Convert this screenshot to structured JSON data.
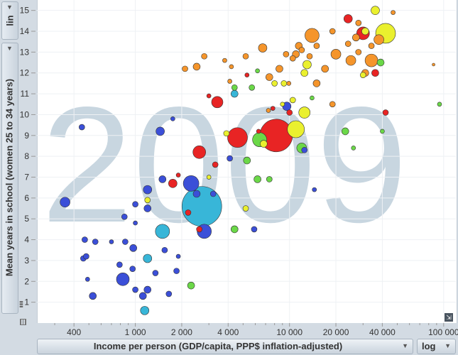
{
  "year_watermark": "2009",
  "y_scale": {
    "label": "lin"
  },
  "x_scale": {
    "label": "log"
  },
  "chart_data": {
    "type": "scatter",
    "title": "",
    "xlabel": "Income per person (GDP/capita, PPP$ inflation-adjusted)",
    "ylabel": "Mean years in school (women 25 to 34 years)",
    "x_scale": "log",
    "y_scale": "linear",
    "xlim": [
      230,
      120000
    ],
    "ylim": [
      0,
      15.5
    ],
    "x_ticks": [
      400,
      1000,
      2000,
      4000,
      10000,
      20000,
      40000,
      100000
    ],
    "x_tick_labels": [
      "400",
      "1 000",
      "2 000",
      "4 000",
      "10 000",
      "20 000",
      "40 000",
      "100 000"
    ],
    "y_ticks": [
      1,
      2,
      3,
      4,
      5,
      6,
      7,
      8,
      9,
      10,
      11,
      12,
      13,
      14,
      15
    ],
    "y_tick_labels": [
      "1",
      "2",
      "3",
      "4",
      "5",
      "6",
      "7",
      "8",
      "9",
      "10",
      "11",
      "12",
      "13",
      "14",
      "15"
    ],
    "colors": {
      "blue": "#3b4fd8",
      "cyan": "#38b6d8",
      "green": "#6bd848",
      "yellow": "#eaf02e",
      "orange": "#f5952b",
      "red": "#e82424"
    },
    "points": [
      {
        "x": 8200,
        "y": 9.0,
        "r": 23,
        "c": "red"
      },
      {
        "x": 2700,
        "y": 5.6,
        "r": 28,
        "c": "cyan"
      },
      {
        "x": 42000,
        "y": 13.9,
        "r": 14,
        "c": "yellow"
      },
      {
        "x": 4600,
        "y": 8.9,
        "r": 14,
        "c": "red"
      },
      {
        "x": 11000,
        "y": 9.3,
        "r": 12,
        "c": "yellow"
      },
      {
        "x": 6400,
        "y": 8.8,
        "r": 10,
        "c": "green"
      },
      {
        "x": 2300,
        "y": 6.7,
        "r": 11,
        "c": "blue"
      },
      {
        "x": 2800,
        "y": 4.4,
        "r": 10,
        "c": "blue"
      },
      {
        "x": 1500,
        "y": 4.4,
        "r": 10,
        "c": "cyan"
      },
      {
        "x": 3400,
        "y": 10.6,
        "r": 8,
        "c": "red"
      },
      {
        "x": 2600,
        "y": 8.2,
        "r": 9,
        "c": "red"
      },
      {
        "x": 14000,
        "y": 13.8,
        "r": 10,
        "c": "orange"
      },
      {
        "x": 30000,
        "y": 13.9,
        "r": 9,
        "c": "red"
      },
      {
        "x": 34000,
        "y": 12.6,
        "r": 9,
        "c": "orange"
      },
      {
        "x": 38000,
        "y": 13.6,
        "r": 7,
        "c": "orange"
      },
      {
        "x": 24000,
        "y": 14.6,
        "r": 6,
        "c": "red"
      },
      {
        "x": 36000,
        "y": 15.0,
        "r": 6,
        "c": "yellow"
      },
      {
        "x": 31000,
        "y": 12.0,
        "r": 5,
        "c": "orange"
      },
      {
        "x": 12500,
        "y": 10.1,
        "r": 8,
        "c": "yellow"
      },
      {
        "x": 9600,
        "y": 10.4,
        "r": 6,
        "c": "blue"
      },
      {
        "x": 13000,
        "y": 12.4,
        "r": 6,
        "c": "yellow"
      },
      {
        "x": 17000,
        "y": 12.2,
        "r": 5,
        "c": "orange"
      },
      {
        "x": 15000,
        "y": 11.5,
        "r": 5,
        "c": "orange"
      },
      {
        "x": 20000,
        "y": 12.9,
        "r": 7,
        "c": "orange"
      },
      {
        "x": 25000,
        "y": 12.6,
        "r": 7,
        "c": "orange"
      },
      {
        "x": 42000,
        "y": 10.1,
        "r": 4,
        "c": "red"
      },
      {
        "x": 36000,
        "y": 12.0,
        "r": 5,
        "c": "red"
      },
      {
        "x": 23000,
        "y": 9.2,
        "r": 5,
        "c": "green"
      },
      {
        "x": 12000,
        "y": 8.4,
        "r": 7,
        "c": "green"
      },
      {
        "x": 12500,
        "y": 8.3,
        "r": 4,
        "c": "blue"
      },
      {
        "x": 6800,
        "y": 8.6,
        "r": 5,
        "c": "yellow"
      },
      {
        "x": 5300,
        "y": 7.8,
        "r": 5,
        "c": "green"
      },
      {
        "x": 4100,
        "y": 7.9,
        "r": 4,
        "c": "blue"
      },
      {
        "x": 3900,
        "y": 9.1,
        "r": 4,
        "c": "yellow"
      },
      {
        "x": 6200,
        "y": 6.9,
        "r": 5,
        "c": "green"
      },
      {
        "x": 7400,
        "y": 6.9,
        "r": 4,
        "c": "green"
      },
      {
        "x": 4400,
        "y": 4.5,
        "r": 5,
        "c": "green"
      },
      {
        "x": 5900,
        "y": 4.5,
        "r": 4,
        "c": "blue"
      },
      {
        "x": 5200,
        "y": 5.5,
        "r": 4,
        "c": "yellow"
      },
      {
        "x": 3200,
        "y": 6.2,
        "r": 4,
        "c": "blue"
      },
      {
        "x": 2500,
        "y": 6.2,
        "r": 5,
        "c": "blue"
      },
      {
        "x": 1750,
        "y": 6.7,
        "r": 6,
        "c": "red"
      },
      {
        "x": 1500,
        "y": 6.9,
        "r": 5,
        "c": "blue"
      },
      {
        "x": 1200,
        "y": 6.4,
        "r": 6,
        "c": "blue"
      },
      {
        "x": 1200,
        "y": 5.9,
        "r": 4,
        "c": "yellow"
      },
      {
        "x": 1000,
        "y": 5.7,
        "r": 4,
        "c": "blue"
      },
      {
        "x": 1200,
        "y": 5.5,
        "r": 5,
        "c": "blue"
      },
      {
        "x": 850,
        "y": 5.1,
        "r": 4,
        "c": "blue"
      },
      {
        "x": 1000,
        "y": 4.8,
        "r": 3,
        "c": "blue"
      },
      {
        "x": 350,
        "y": 5.8,
        "r": 7,
        "c": "blue"
      },
      {
        "x": 1450,
        "y": 9.2,
        "r": 6,
        "c": "blue"
      },
      {
        "x": 1750,
        "y": 9.8,
        "r": 3,
        "c": "blue"
      },
      {
        "x": 450,
        "y": 9.4,
        "r": 4,
        "c": "blue"
      },
      {
        "x": 2200,
        "y": 5.3,
        "r": 4,
        "c": "red"
      },
      {
        "x": 2600,
        "y": 4.5,
        "r": 4,
        "c": "red"
      },
      {
        "x": 550,
        "y": 3.9,
        "r": 4,
        "c": "blue"
      },
      {
        "x": 700,
        "y": 3.9,
        "r": 3,
        "c": "blue"
      },
      {
        "x": 860,
        "y": 3.9,
        "r": 4,
        "c": "blue"
      },
      {
        "x": 470,
        "y": 4.0,
        "r": 4,
        "c": "blue"
      },
      {
        "x": 460,
        "y": 3.1,
        "r": 4,
        "c": "blue"
      },
      {
        "x": 480,
        "y": 3.2,
        "r": 4,
        "c": "blue"
      },
      {
        "x": 970,
        "y": 3.6,
        "r": 5,
        "c": "blue"
      },
      {
        "x": 1200,
        "y": 3.1,
        "r": 6,
        "c": "cyan"
      },
      {
        "x": 1550,
        "y": 3.5,
        "r": 4,
        "c": "blue"
      },
      {
        "x": 1900,
        "y": 3.2,
        "r": 3,
        "c": "blue"
      },
      {
        "x": 790,
        "y": 2.8,
        "r": 4,
        "c": "blue"
      },
      {
        "x": 830,
        "y": 2.1,
        "r": 9,
        "c": "blue"
      },
      {
        "x": 960,
        "y": 2.6,
        "r": 4,
        "c": "blue"
      },
      {
        "x": 490,
        "y": 2.1,
        "r": 3,
        "c": "blue"
      },
      {
        "x": 1350,
        "y": 2.4,
        "r": 4,
        "c": "blue"
      },
      {
        "x": 1850,
        "y": 2.5,
        "r": 4,
        "c": "blue"
      },
      {
        "x": 1200,
        "y": 1.6,
        "r": 5,
        "c": "blue"
      },
      {
        "x": 1000,
        "y": 1.6,
        "r": 4,
        "c": "blue"
      },
      {
        "x": 1650,
        "y": 1.4,
        "r": 4,
        "c": "blue"
      },
      {
        "x": 530,
        "y": 1.3,
        "r": 5,
        "c": "blue"
      },
      {
        "x": 1120,
        "y": 1.3,
        "r": 5,
        "c": "blue"
      },
      {
        "x": 2300,
        "y": 1.8,
        "r": 5,
        "c": "green"
      },
      {
        "x": 1150,
        "y": 0.6,
        "r": 6,
        "c": "cyan"
      },
      {
        "x": 2100,
        "y": 12.2,
        "r": 4,
        "c": "orange"
      },
      {
        "x": 2500,
        "y": 12.3,
        "r": 5,
        "c": "orange"
      },
      {
        "x": 2800,
        "y": 12.8,
        "r": 4,
        "c": "orange"
      },
      {
        "x": 3800,
        "y": 12.6,
        "r": 3,
        "c": "orange"
      },
      {
        "x": 4100,
        "y": 11.6,
        "r": 3,
        "c": "orange"
      },
      {
        "x": 5200,
        "y": 12.8,
        "r": 4,
        "c": "orange"
      },
      {
        "x": 6700,
        "y": 13.2,
        "r": 6,
        "c": "orange"
      },
      {
        "x": 7400,
        "y": 11.8,
        "r": 5,
        "c": "orange"
      },
      {
        "x": 8600,
        "y": 12.2,
        "r": 5,
        "c": "orange"
      },
      {
        "x": 9200,
        "y": 11.5,
        "r": 4,
        "c": "yellow"
      },
      {
        "x": 9500,
        "y": 12.9,
        "r": 4,
        "c": "orange"
      },
      {
        "x": 11000,
        "y": 12.9,
        "r": 5,
        "c": "orange"
      },
      {
        "x": 11500,
        "y": 13.3,
        "r": 5,
        "c": "orange"
      },
      {
        "x": 12000,
        "y": 13.1,
        "r": 4,
        "c": "orange"
      },
      {
        "x": 10500,
        "y": 12.7,
        "r": 4,
        "c": "orange"
      },
      {
        "x": 13500,
        "y": 12.8,
        "r": 4,
        "c": "orange"
      },
      {
        "x": 15000,
        "y": 13.3,
        "r": 4,
        "c": "orange"
      },
      {
        "x": 19000,
        "y": 14.0,
        "r": 4,
        "c": "orange"
      },
      {
        "x": 24000,
        "y": 13.4,
        "r": 4,
        "c": "orange"
      },
      {
        "x": 28000,
        "y": 13.0,
        "r": 4,
        "c": "orange"
      },
      {
        "x": 27000,
        "y": 13.7,
        "r": 5,
        "c": "orange"
      },
      {
        "x": 31000,
        "y": 14.0,
        "r": 5,
        "c": "yellow"
      },
      {
        "x": 28000,
        "y": 14.4,
        "r": 4,
        "c": "orange"
      },
      {
        "x": 34000,
        "y": 13.3,
        "r": 4,
        "c": "orange"
      },
      {
        "x": 39000,
        "y": 12.5,
        "r": 5,
        "c": "green"
      },
      {
        "x": 30000,
        "y": 11.9,
        "r": 4,
        "c": "yellow"
      },
      {
        "x": 47000,
        "y": 14.9,
        "r": 3,
        "c": "orange"
      },
      {
        "x": 86000,
        "y": 12.4,
        "r": 2,
        "c": "orange"
      },
      {
        "x": 94000,
        "y": 10.5,
        "r": 3,
        "c": "green"
      },
      {
        "x": 5700,
        "y": 11.3,
        "r": 4,
        "c": "green"
      },
      {
        "x": 4400,
        "y": 11.3,
        "r": 4,
        "c": "green"
      },
      {
        "x": 7300,
        "y": 10.2,
        "r": 3,
        "c": "orange"
      },
      {
        "x": 8000,
        "y": 11.5,
        "r": 4,
        "c": "yellow"
      },
      {
        "x": 9900,
        "y": 11.5,
        "r": 3,
        "c": "orange"
      },
      {
        "x": 10500,
        "y": 10.7,
        "r": 4,
        "c": "yellow"
      },
      {
        "x": 14000,
        "y": 10.8,
        "r": 3,
        "c": "green"
      },
      {
        "x": 19000,
        "y": 10.5,
        "r": 4,
        "c": "orange"
      },
      {
        "x": 9000,
        "y": 10.5,
        "r": 3,
        "c": "yellow"
      },
      {
        "x": 7800,
        "y": 10.3,
        "r": 3,
        "c": "red"
      },
      {
        "x": 6300,
        "y": 9.2,
        "r": 3,
        "c": "red"
      },
      {
        "x": 5300,
        "y": 11.9,
        "r": 3,
        "c": "red"
      },
      {
        "x": 4200,
        "y": 12.3,
        "r": 3,
        "c": "orange"
      },
      {
        "x": 3000,
        "y": 10.9,
        "r": 3,
        "c": "red"
      },
      {
        "x": 4400,
        "y": 11.0,
        "r": 5,
        "c": "cyan"
      },
      {
        "x": 3300,
        "y": 7.6,
        "r": 4,
        "c": "red"
      },
      {
        "x": 3000,
        "y": 7.0,
        "r": 3,
        "c": "yellow"
      },
      {
        "x": 1900,
        "y": 7.1,
        "r": 3,
        "c": "red"
      },
      {
        "x": 14500,
        "y": 6.4,
        "r": 3,
        "c": "blue"
      },
      {
        "x": 6200,
        "y": 12.1,
        "r": 3,
        "c": "green"
      },
      {
        "x": 26000,
        "y": 8.4,
        "r": 3,
        "c": "green"
      },
      {
        "x": 40000,
        "y": 9.2,
        "r": 3,
        "c": "green"
      },
      {
        "x": 12500,
        "y": 12.0,
        "r": 5,
        "c": "yellow"
      },
      {
        "x": 10000,
        "y": 10.1,
        "r": 4,
        "c": "red"
      }
    ]
  }
}
